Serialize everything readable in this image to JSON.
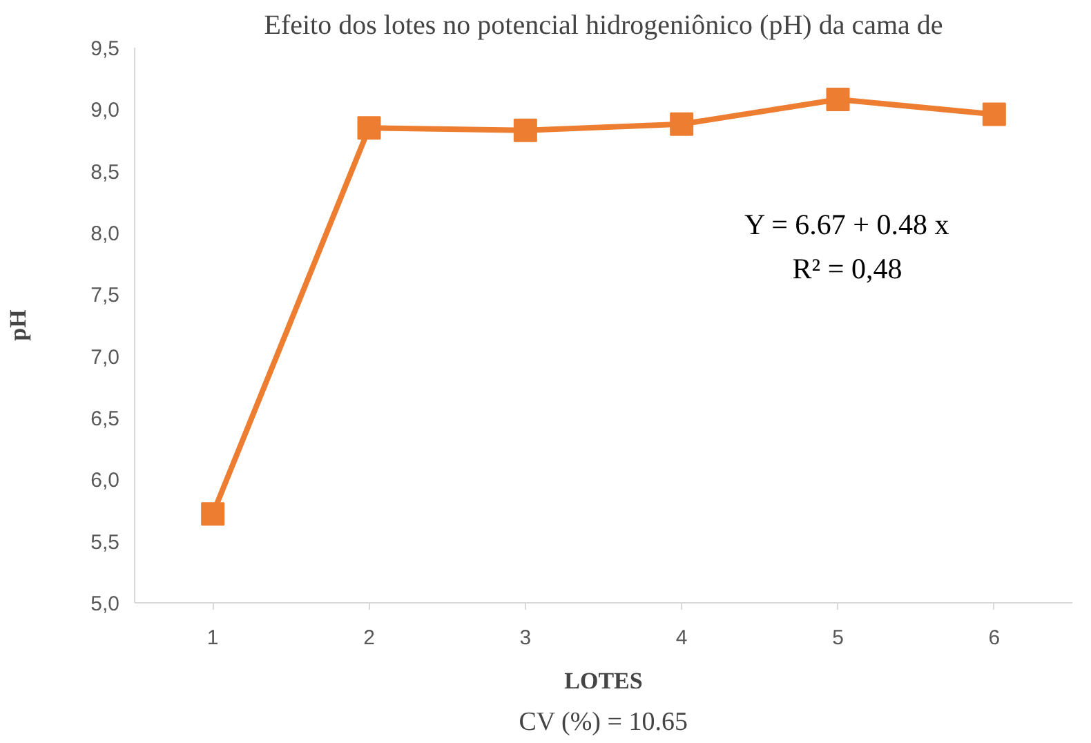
{
  "chart_data": {
    "type": "line",
    "title": "Efeito dos lotes no potencial hidrogeniônico (pH) da cama de",
    "xlabel": "LOTES",
    "ylabel": "pH",
    "categories": [
      "1",
      "2",
      "3",
      "4",
      "5",
      "6"
    ],
    "series": [
      {
        "color": "#ed7d31",
        "values": [
          5.72,
          8.85,
          8.83,
          8.88,
          9.08,
          8.96
        ]
      }
    ],
    "ylim": [
      5.0,
      9.5
    ],
    "yticks": [
      {
        "value": 5.0,
        "label": "5,0"
      },
      {
        "value": 5.5,
        "label": "5,5"
      },
      {
        "value": 6.0,
        "label": "6,0"
      },
      {
        "value": 6.5,
        "label": "6,5"
      },
      {
        "value": 7.0,
        "label": "7,0"
      },
      {
        "value": 7.5,
        "label": "7,5"
      },
      {
        "value": 8.0,
        "label": "8,0"
      },
      {
        "value": 8.5,
        "label": "8,5"
      },
      {
        "value": 9.0,
        "label": "9,0"
      },
      {
        "value": 9.5,
        "label": "9,5"
      }
    ],
    "marker": "square",
    "grid": false,
    "annotations": [
      "Y = 6.67 + 0.48 x",
      "R² = 0,48",
      "CV (%) = 10.65"
    ]
  }
}
